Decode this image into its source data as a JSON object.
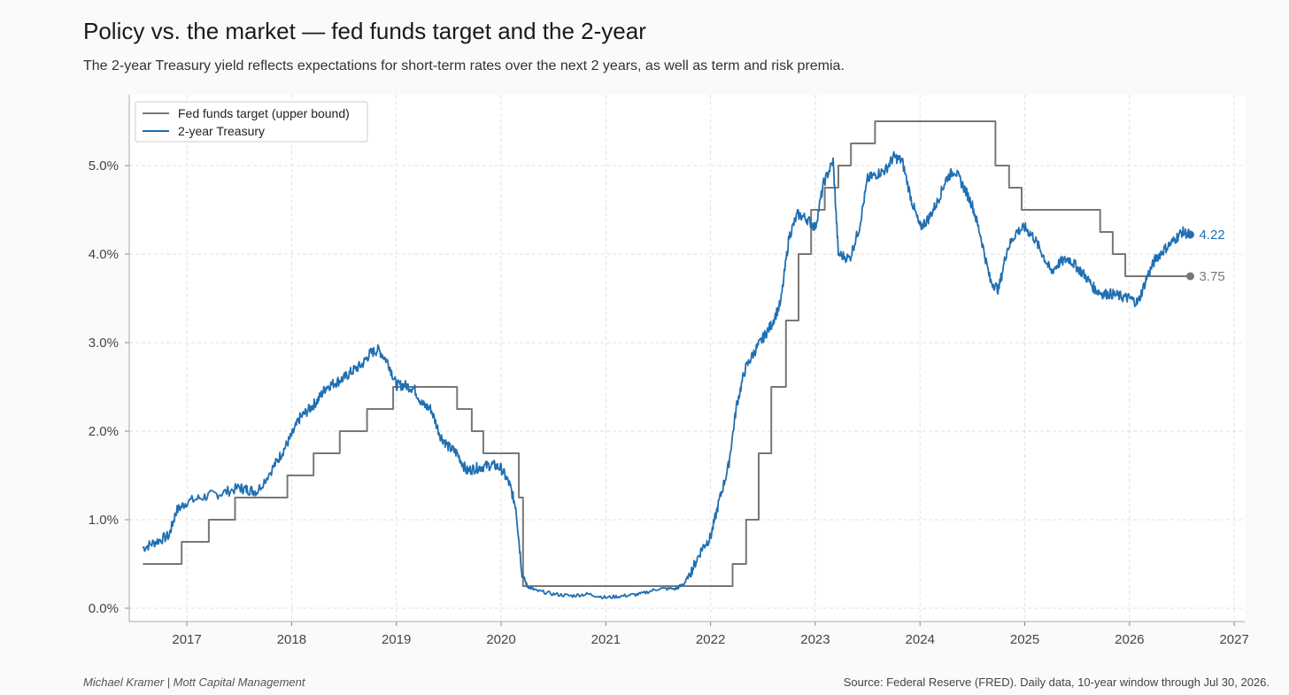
{
  "header": {
    "title": "Policy vs. the market — fed funds target and the 2-year",
    "subtitle": "The 2-year Treasury yield reflects expectations for short-term rates over the next 2 years, as well as term and risk premia."
  },
  "footer": {
    "author": "Michael Kramer  |  Mott Capital Management",
    "source": "Source: Federal Reserve (FRED). Daily data, 10-year window through Jul 30, 2026."
  },
  "colors": {
    "fed_funds": "#777777",
    "treasury": "#1f6fb2",
    "grid": "#e2e2e2",
    "axis": "#aaaaaa"
  },
  "chart_data": {
    "type": "line",
    "title": "Policy vs. the market — fed funds target and the 2-year",
    "xlabel": "",
    "ylabel": "",
    "xlim": [
      2016.45,
      2027.1
    ],
    "ylim": [
      -0.15,
      5.8
    ],
    "x_ticks": [
      2017,
      2018,
      2019,
      2020,
      2021,
      2022,
      2023,
      2024,
      2025,
      2026,
      2027
    ],
    "x_tick_labels": [
      "2017",
      "2018",
      "2019",
      "2020",
      "2021",
      "2022",
      "2023",
      "2024",
      "2025",
      "2026",
      "2027"
    ],
    "y_ticks": [
      0,
      1,
      2,
      3,
      4,
      5
    ],
    "y_tick_labels": [
      "0.0%",
      "1.0%",
      "2.0%",
      "3.0%",
      "4.0%",
      "5.0%"
    ],
    "grid": true,
    "legend_position": "top-left",
    "series": [
      {
        "name": "Fed funds target (upper bound)",
        "style": "step",
        "end_label": "3.75",
        "points": [
          [
            2016.58,
            0.5
          ],
          [
            2016.95,
            0.75
          ],
          [
            2017.21,
            1.0
          ],
          [
            2017.46,
            1.25
          ],
          [
            2017.96,
            1.5
          ],
          [
            2018.21,
            1.75
          ],
          [
            2018.46,
            2.0
          ],
          [
            2018.72,
            2.25
          ],
          [
            2018.97,
            2.5
          ],
          [
            2019.58,
            2.25
          ],
          [
            2019.72,
            2.0
          ],
          [
            2019.83,
            1.75
          ],
          [
            2020.17,
            1.25
          ],
          [
            2020.21,
            0.25
          ],
          [
            2022.21,
            0.5
          ],
          [
            2022.34,
            1.0
          ],
          [
            2022.46,
            1.75
          ],
          [
            2022.58,
            2.5
          ],
          [
            2022.72,
            3.25
          ],
          [
            2022.84,
            4.0
          ],
          [
            2022.96,
            4.5
          ],
          [
            2023.09,
            4.75
          ],
          [
            2023.22,
            5.0
          ],
          [
            2023.34,
            5.25
          ],
          [
            2023.57,
            5.5
          ],
          [
            2024.72,
            5.0
          ],
          [
            2024.85,
            4.75
          ],
          [
            2024.97,
            4.5
          ],
          [
            2025.72,
            4.25
          ],
          [
            2025.84,
            4.0
          ],
          [
            2025.96,
            3.75
          ],
          [
            2026.58,
            3.75
          ]
        ]
      },
      {
        "name": "2-year Treasury",
        "style": "line",
        "end_label": "4.22",
        "points": [
          [
            2016.58,
            0.68
          ],
          [
            2016.7,
            0.75
          ],
          [
            2016.83,
            0.82
          ],
          [
            2016.9,
            1.1
          ],
          [
            2017.0,
            1.2
          ],
          [
            2017.17,
            1.26
          ],
          [
            2017.33,
            1.3
          ],
          [
            2017.5,
            1.36
          ],
          [
            2017.58,
            1.34
          ],
          [
            2017.67,
            1.32
          ],
          [
            2017.83,
            1.6
          ],
          [
            2017.92,
            1.78
          ],
          [
            2018.0,
            1.95
          ],
          [
            2018.08,
            2.15
          ],
          [
            2018.17,
            2.25
          ],
          [
            2018.25,
            2.35
          ],
          [
            2018.33,
            2.5
          ],
          [
            2018.42,
            2.55
          ],
          [
            2018.5,
            2.6
          ],
          [
            2018.58,
            2.68
          ],
          [
            2018.67,
            2.75
          ],
          [
            2018.75,
            2.88
          ],
          [
            2018.83,
            2.92
          ],
          [
            2018.92,
            2.78
          ],
          [
            2019.0,
            2.52
          ],
          [
            2019.08,
            2.52
          ],
          [
            2019.17,
            2.48
          ],
          [
            2019.25,
            2.3
          ],
          [
            2019.33,
            2.25
          ],
          [
            2019.42,
            1.95
          ],
          [
            2019.5,
            1.82
          ],
          [
            2019.58,
            1.75
          ],
          [
            2019.67,
            1.55
          ],
          [
            2019.75,
            1.58
          ],
          [
            2019.83,
            1.6
          ],
          [
            2019.92,
            1.62
          ],
          [
            2020.0,
            1.58
          ],
          [
            2020.08,
            1.4
          ],
          [
            2020.14,
            1.15
          ],
          [
            2020.2,
            0.4
          ],
          [
            2020.25,
            0.25
          ],
          [
            2020.33,
            0.2
          ],
          [
            2020.5,
            0.16
          ],
          [
            2020.67,
            0.14
          ],
          [
            2020.83,
            0.16
          ],
          [
            2021.0,
            0.12
          ],
          [
            2021.17,
            0.14
          ],
          [
            2021.33,
            0.16
          ],
          [
            2021.5,
            0.22
          ],
          [
            2021.67,
            0.22
          ],
          [
            2021.75,
            0.28
          ],
          [
            2021.83,
            0.45
          ],
          [
            2021.92,
            0.68
          ],
          [
            2022.0,
            0.8
          ],
          [
            2022.08,
            1.2
          ],
          [
            2022.17,
            1.6
          ],
          [
            2022.25,
            2.3
          ],
          [
            2022.33,
            2.7
          ],
          [
            2022.42,
            2.9
          ],
          [
            2022.5,
            3.05
          ],
          [
            2022.58,
            3.2
          ],
          [
            2022.67,
            3.45
          ],
          [
            2022.75,
            4.2
          ],
          [
            2022.83,
            4.45
          ],
          [
            2022.92,
            4.4
          ],
          [
            2023.0,
            4.3
          ],
          [
            2023.08,
            4.8
          ],
          [
            2023.17,
            5.05
          ],
          [
            2023.22,
            4.0
          ],
          [
            2023.33,
            3.95
          ],
          [
            2023.42,
            4.3
          ],
          [
            2023.5,
            4.85
          ],
          [
            2023.58,
            4.9
          ],
          [
            2023.67,
            4.95
          ],
          [
            2023.75,
            5.1
          ],
          [
            2023.83,
            5.05
          ],
          [
            2023.92,
            4.6
          ],
          [
            2024.0,
            4.3
          ],
          [
            2024.08,
            4.4
          ],
          [
            2024.17,
            4.6
          ],
          [
            2024.25,
            4.85
          ],
          [
            2024.33,
            4.95
          ],
          [
            2024.42,
            4.75
          ],
          [
            2024.5,
            4.55
          ],
          [
            2024.58,
            4.2
          ],
          [
            2024.67,
            3.7
          ],
          [
            2024.75,
            3.6
          ],
          [
            2024.83,
            4.05
          ],
          [
            2024.92,
            4.25
          ],
          [
            2025.0,
            4.3
          ],
          [
            2025.08,
            4.2
          ],
          [
            2025.17,
            4.0
          ],
          [
            2025.25,
            3.8
          ],
          [
            2025.33,
            3.9
          ],
          [
            2025.42,
            3.95
          ],
          [
            2025.5,
            3.85
          ],
          [
            2025.58,
            3.75
          ],
          [
            2025.67,
            3.6
          ],
          [
            2025.75,
            3.55
          ],
          [
            2025.83,
            3.55
          ],
          [
            2025.92,
            3.52
          ],
          [
            2026.0,
            3.5
          ],
          [
            2026.08,
            3.45
          ],
          [
            2026.17,
            3.75
          ],
          [
            2026.25,
            3.95
          ],
          [
            2026.33,
            4.05
          ],
          [
            2026.42,
            4.15
          ],
          [
            2026.5,
            4.25
          ],
          [
            2026.58,
            4.22
          ]
        ]
      }
    ]
  }
}
